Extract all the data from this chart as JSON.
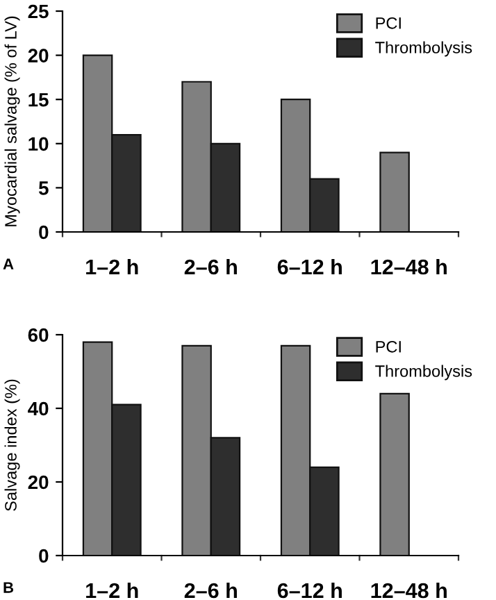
{
  "chart_data": [
    {
      "type": "bar",
      "ylabel": "Myocardial salvage (% of LV)",
      "categories": [
        "1–2 h",
        "2–6 h",
        "6–12 h",
        "12–48 h"
      ],
      "series": [
        {
          "name": "PCI",
          "color": "#808080",
          "values": [
            20,
            17,
            15,
            9
          ]
        },
        {
          "name": "Thrombolysis",
          "color": "#2e2e2e",
          "values": [
            11,
            10,
            6,
            null
          ]
        }
      ],
      "ylim": [
        0,
        25
      ],
      "yticks": [
        0,
        5,
        10,
        15,
        20,
        25
      ],
      "grid": false,
      "legend": "top right",
      "annotations": [
        "A"
      ]
    },
    {
      "type": "bar",
      "ylabel": "Salvage index (%)",
      "categories": [
        "1–2 h",
        "2–6 h",
        "6–12 h",
        "12–48 h"
      ],
      "series": [
        {
          "name": "PCI",
          "color": "#808080",
          "values": [
            58,
            57,
            57,
            44
          ]
        },
        {
          "name": "Thrombolysis",
          "color": "#2e2e2e",
          "values": [
            41,
            32,
            24,
            null
          ]
        }
      ],
      "ylim": [
        0,
        60
      ],
      "yticks": [
        0,
        20,
        40,
        60
      ],
      "grid": false,
      "legend": "top right",
      "annotations": [
        "B"
      ]
    }
  ]
}
